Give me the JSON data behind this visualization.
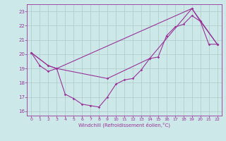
{
  "xlabel": "Windchill (Refroidissement éolien,°C)",
  "xlim": [
    -0.5,
    22.5
  ],
  "ylim": [
    15.7,
    23.5
  ],
  "yticks": [
    16,
    17,
    18,
    19,
    20,
    21,
    22,
    23
  ],
  "xticks": [
    0,
    1,
    2,
    3,
    4,
    5,
    6,
    7,
    8,
    9,
    10,
    11,
    12,
    13,
    14,
    15,
    16,
    17,
    18,
    19,
    20,
    21,
    22
  ],
  "background_color": "#cce8e8",
  "grid_color": "#b0c8c8",
  "line_color": "#993399",
  "line1_x": [
    0,
    1,
    2,
    3,
    4,
    5,
    6,
    7,
    8,
    9,
    10,
    11,
    12,
    13,
    14,
    15,
    16,
    17,
    18,
    19,
    20,
    21,
    22
  ],
  "line1_y": [
    20.1,
    19.2,
    18.8,
    19.0,
    17.2,
    16.9,
    16.5,
    16.4,
    16.3,
    17.0,
    17.9,
    18.2,
    18.3,
    18.9,
    19.7,
    19.8,
    21.3,
    21.9,
    22.1,
    22.7,
    22.3,
    20.7,
    20.7
  ],
  "line2_x": [
    0,
    2,
    3,
    9,
    14,
    19,
    20,
    22
  ],
  "line2_y": [
    20.1,
    19.2,
    19.0,
    18.3,
    19.7,
    23.2,
    22.3,
    20.7
  ],
  "line3_x": [
    0,
    2,
    3,
    19,
    22
  ],
  "line3_y": [
    20.1,
    19.2,
    19.0,
    23.2,
    20.7
  ]
}
